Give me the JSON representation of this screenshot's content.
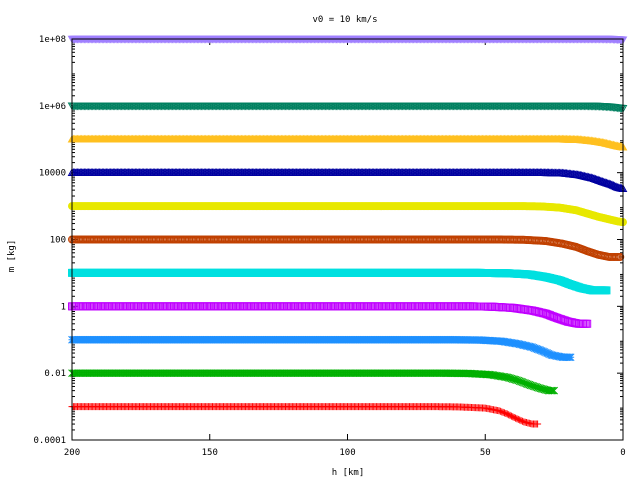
{
  "chart_data": {
    "type": "scatter",
    "title": "v0 = 10 km/s",
    "xlabel": "h [km]",
    "ylabel": "m [kg]",
    "xlim": [
      200,
      0
    ],
    "x_reversed": true,
    "ylim": [
      0.0001,
      100000000
    ],
    "y_scale": "log",
    "grid": false,
    "legend": "none",
    "x_ticks": [
      {
        "value": 200,
        "label": "200"
      },
      {
        "value": 150,
        "label": "150"
      },
      {
        "value": 100,
        "label": "100"
      },
      {
        "value": 50,
        "label": "50"
      },
      {
        "value": 0,
        "label": "0"
      }
    ],
    "y_ticks": [
      {
        "value": 100000000,
        "label": "1e+08"
      },
      {
        "value": 1000000,
        "label": "1e+06"
      },
      {
        "value": 10000,
        "label": "10000"
      },
      {
        "value": 100,
        "label": "100"
      },
      {
        "value": 1,
        "label": "1"
      },
      {
        "value": 0.01,
        "label": "0.01"
      },
      {
        "value": 0.0001,
        "label": "0.0001"
      }
    ],
    "series": [
      {
        "m0": 0.001,
        "color": "#ff0000",
        "marker": "plus",
        "x": [
          200,
          70,
          60,
          50,
          45,
          42,
          39,
          36,
          33,
          31
        ],
        "y": [
          0.001,
          0.001,
          0.00098,
          0.0009,
          0.00075,
          0.0006,
          0.00045,
          0.00035,
          0.0003,
          0.0003
        ]
      },
      {
        "m0": 0.01,
        "color": "#00b000",
        "marker": "x",
        "x": [
          200,
          66,
          56,
          48,
          42,
          38,
          34,
          30,
          27,
          25
        ],
        "y": [
          0.01,
          0.01,
          0.0098,
          0.009,
          0.0075,
          0.006,
          0.0045,
          0.0035,
          0.003,
          0.003
        ]
      },
      {
        "m0": 0.1,
        "color": "#1e90ff",
        "marker": "star",
        "x": [
          200,
          62,
          52,
          44,
          38,
          33,
          29,
          26,
          22,
          19
        ],
        "y": [
          0.1,
          0.1,
          0.098,
          0.09,
          0.075,
          0.06,
          0.045,
          0.035,
          0.03,
          0.03
        ]
      },
      {
        "m0": 1,
        "color": "#c000ff",
        "marker": "square",
        "x": [
          200,
          57,
          48,
          40,
          33,
          28,
          24,
          20,
          16,
          13
        ],
        "y": [
          1,
          1,
          0.98,
          0.9,
          0.75,
          0.6,
          0.45,
          0.35,
          0.3,
          0.3
        ]
      },
      {
        "m0": 10,
        "color": "#00e0e0",
        "marker": "square-filled",
        "x": [
          200,
          52,
          42,
          34,
          28,
          23,
          19,
          15,
          11,
          6
        ],
        "y": [
          10,
          10,
          9.8,
          9,
          7.5,
          6,
          4.5,
          3.5,
          3,
          3
        ]
      },
      {
        "m0": 100,
        "color": "#c04000",
        "marker": "circle",
        "x": [
          200,
          46,
          36,
          28,
          22,
          17,
          13,
          9,
          5,
          1
        ],
        "y": [
          100,
          100,
          98,
          90,
          75,
          60,
          45,
          35,
          30,
          30
        ]
      },
      {
        "m0": 1000,
        "color": "#e8e800",
        "marker": "circle-filled",
        "x": [
          200,
          38,
          30,
          23,
          17,
          13,
          9,
          5,
          2,
          0
        ],
        "y": [
          1000,
          1000,
          980,
          900,
          750,
          600,
          480,
          400,
          350,
          330
        ]
      },
      {
        "m0": 10000,
        "color": "#0000a0",
        "marker": "triangle",
        "x": [
          200,
          30,
          22,
          16,
          11,
          7,
          4,
          2,
          0
        ],
        "y": [
          10000,
          10000,
          9700,
          8500,
          6800,
          5200,
          4300,
          3600,
          3300
        ]
      },
      {
        "m0": 100000,
        "color": "#ffc020",
        "marker": "triangle-filled",
        "x": [
          200,
          22,
          16,
          11,
          7,
          4,
          2,
          0
        ],
        "y": [
          100000,
          100000,
          97000,
          88000,
          78000,
          68000,
          62000,
          58000
        ]
      },
      {
        "m0": 1000000,
        "color": "#008060",
        "marker": "triangle-down",
        "x": [
          200,
          14,
          9,
          5,
          3,
          1,
          0
        ],
        "y": [
          1000000,
          1000000,
          980000,
          940000,
          900000,
          860000,
          840000
        ]
      },
      {
        "m0": 100000000,
        "color": "#a080ff",
        "marker": "triangle-down-filled",
        "x": [
          200,
          8,
          4,
          2,
          0
        ],
        "y": [
          100000000,
          100000000,
          99000000,
          97000000,
          95000000
        ]
      }
    ]
  }
}
